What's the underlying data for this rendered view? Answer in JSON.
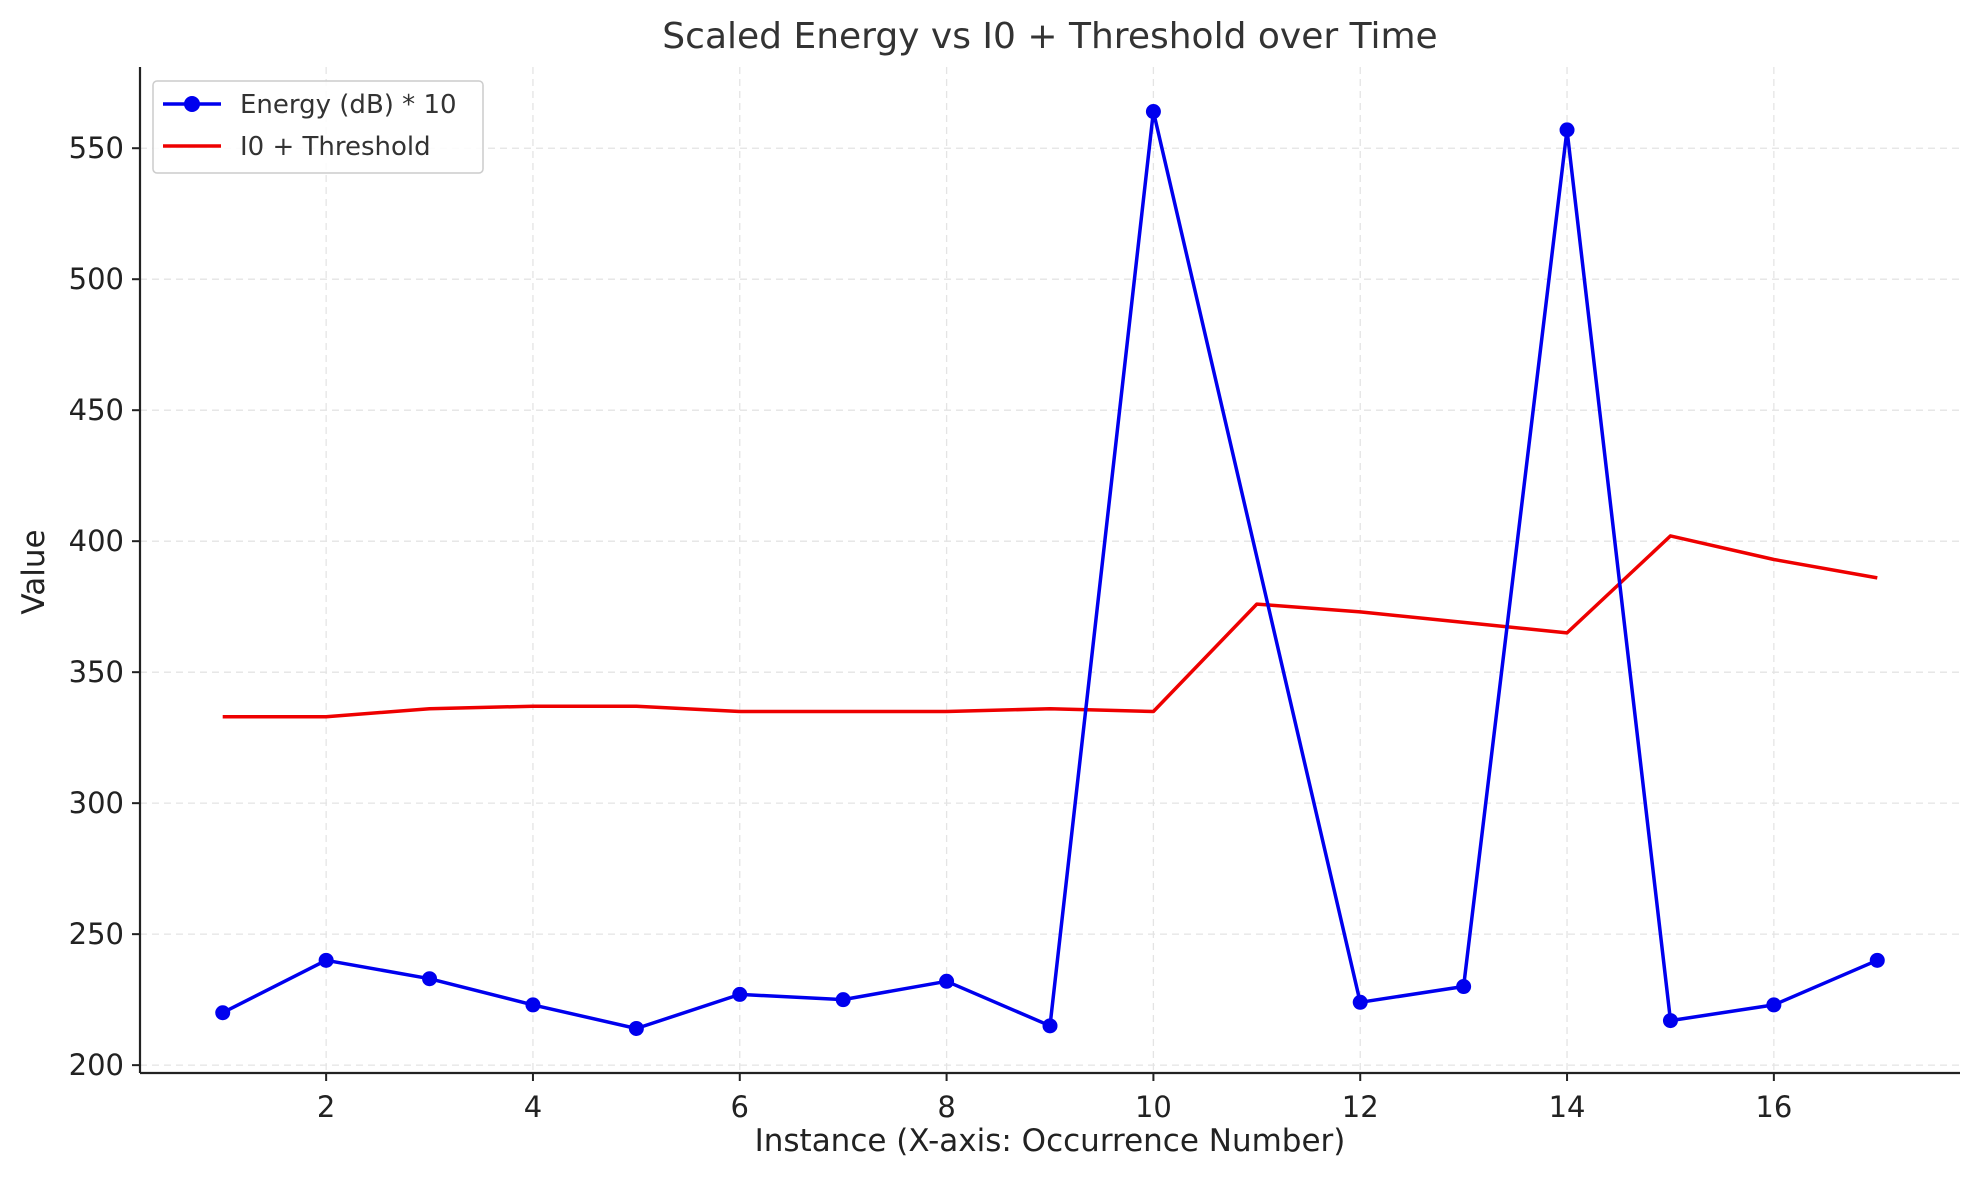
{
  "chart_data": {
    "type": "line",
    "title": "Scaled Energy vs I0 + Threshold over Time",
    "xlabel": "Instance (X-axis: Occurrence Number)",
    "ylabel": "Value",
    "x": [
      1,
      2,
      3,
      4,
      5,
      6,
      7,
      8,
      9,
      10,
      11,
      12,
      13,
      14,
      15,
      16,
      17
    ],
    "xlim": [
      0.2,
      17.8
    ],
    "ylim": [
      197,
      581
    ],
    "xticks": [
      2,
      4,
      6,
      8,
      10,
      12,
      14,
      16
    ],
    "yticks": [
      200,
      250,
      300,
      350,
      400,
      450,
      500,
      550
    ],
    "grid": true,
    "legend_position": "upper-left",
    "series": [
      {
        "name": "Energy (dB) * 10",
        "color": "#0000ee",
        "marker": "circle",
        "values": [
          220,
          240,
          233,
          223,
          214,
          227,
          225,
          232,
          215,
          564,
          null,
          224,
          230,
          557,
          217,
          223,
          240
        ]
      },
      {
        "name": "I0 + Threshold",
        "color": "#ee0000",
        "marker": "none",
        "values": [
          333,
          333,
          336,
          337,
          337,
          335,
          335,
          335,
          336,
          335,
          376,
          373,
          369,
          365,
          402,
          393,
          386
        ]
      }
    ]
  }
}
